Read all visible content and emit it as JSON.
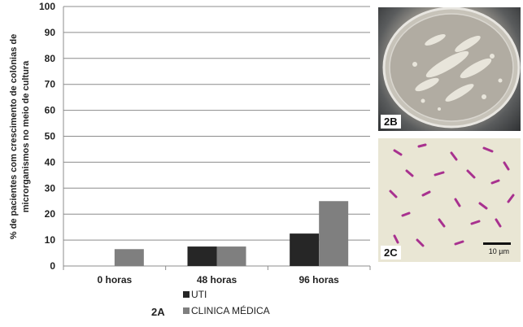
{
  "chart_data": {
    "type": "bar",
    "categories": [
      "0 horas",
      "48 horas",
      "96 horas"
    ],
    "series": [
      {
        "name": "UTI",
        "values": [
          0,
          7.5,
          12.5
        ],
        "color": "#262626"
      },
      {
        "name": "CLINICA MÉDICA",
        "values": [
          6.5,
          7.5,
          25
        ],
        "color": "#7f7f7f"
      }
    ],
    "ylim": [
      0,
      100
    ],
    "yticks": [
      0,
      10,
      20,
      30,
      40,
      50,
      60,
      70,
      80,
      90,
      100
    ],
    "ylabel_line1": "% de pacientes com crescimento de colônias de",
    "ylabel_line2": "microrganismos no meio de cultura",
    "xlabel": "",
    "grid": true,
    "legend_position": "bottom"
  },
  "figure_labels": {
    "chart": "2A",
    "plate": "2B",
    "micro": "2C"
  },
  "scale_bar_label": "10 µm",
  "images": {
    "plate": "petri-dish-with-bacterial-colonies",
    "micro": "gram-stained-bacteria-micrograph"
  }
}
